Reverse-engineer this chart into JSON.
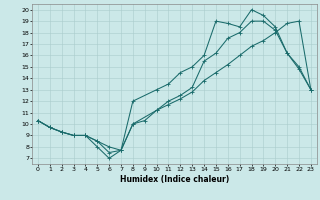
{
  "xlabel": "Humidex (Indice chaleur)",
  "bg_color": "#cbe8e8",
  "line_color": "#1a6b6b",
  "grid_color": "#aacccc",
  "xlim": [
    -0.5,
    23.5
  ],
  "ylim": [
    6.5,
    20.5
  ],
  "xticks": [
    0,
    1,
    2,
    3,
    4,
    5,
    6,
    7,
    8,
    9,
    10,
    11,
    12,
    13,
    14,
    15,
    16,
    17,
    18,
    19,
    20,
    21,
    22,
    23
  ],
  "yticks": [
    7,
    8,
    9,
    10,
    11,
    12,
    13,
    14,
    15,
    16,
    17,
    18,
    19,
    20
  ],
  "line1_x": [
    0,
    1,
    2,
    3,
    4,
    5,
    6,
    7,
    8,
    9,
    10,
    11,
    12,
    13,
    14,
    15,
    16,
    17,
    18,
    19,
    20,
    21,
    22,
    23
  ],
  "line1_y": [
    10.3,
    9.7,
    9.3,
    9.0,
    9.0,
    8.5,
    7.5,
    7.7,
    10.0,
    10.3,
    11.2,
    11.7,
    12.2,
    12.8,
    13.8,
    14.5,
    15.2,
    16.0,
    16.8,
    17.3,
    18.0,
    18.8,
    19.0,
    13.0
  ],
  "line2_x": [
    0,
    1,
    2,
    3,
    4,
    5,
    6,
    7,
    8,
    10,
    11,
    12,
    13,
    14,
    15,
    16,
    17,
    18,
    19,
    20,
    21,
    22,
    23
  ],
  "line2_y": [
    10.3,
    9.7,
    9.3,
    9.0,
    9.0,
    8.5,
    8.0,
    7.7,
    10.0,
    11.2,
    12.0,
    12.5,
    13.2,
    15.5,
    16.2,
    17.5,
    18.0,
    19.0,
    19.0,
    18.2,
    16.2,
    14.8,
    13.0
  ],
  "line3_x": [
    0,
    1,
    2,
    3,
    4,
    5,
    6,
    7,
    8,
    10,
    11,
    12,
    13,
    14,
    15,
    16,
    17,
    18,
    19,
    20,
    21,
    22,
    23
  ],
  "line3_y": [
    10.3,
    9.7,
    9.3,
    9.0,
    9.0,
    8.0,
    7.0,
    7.7,
    12.0,
    13.0,
    13.5,
    14.5,
    15.0,
    16.0,
    19.0,
    18.8,
    18.5,
    20.0,
    19.5,
    18.5,
    16.2,
    15.0,
    13.0
  ]
}
